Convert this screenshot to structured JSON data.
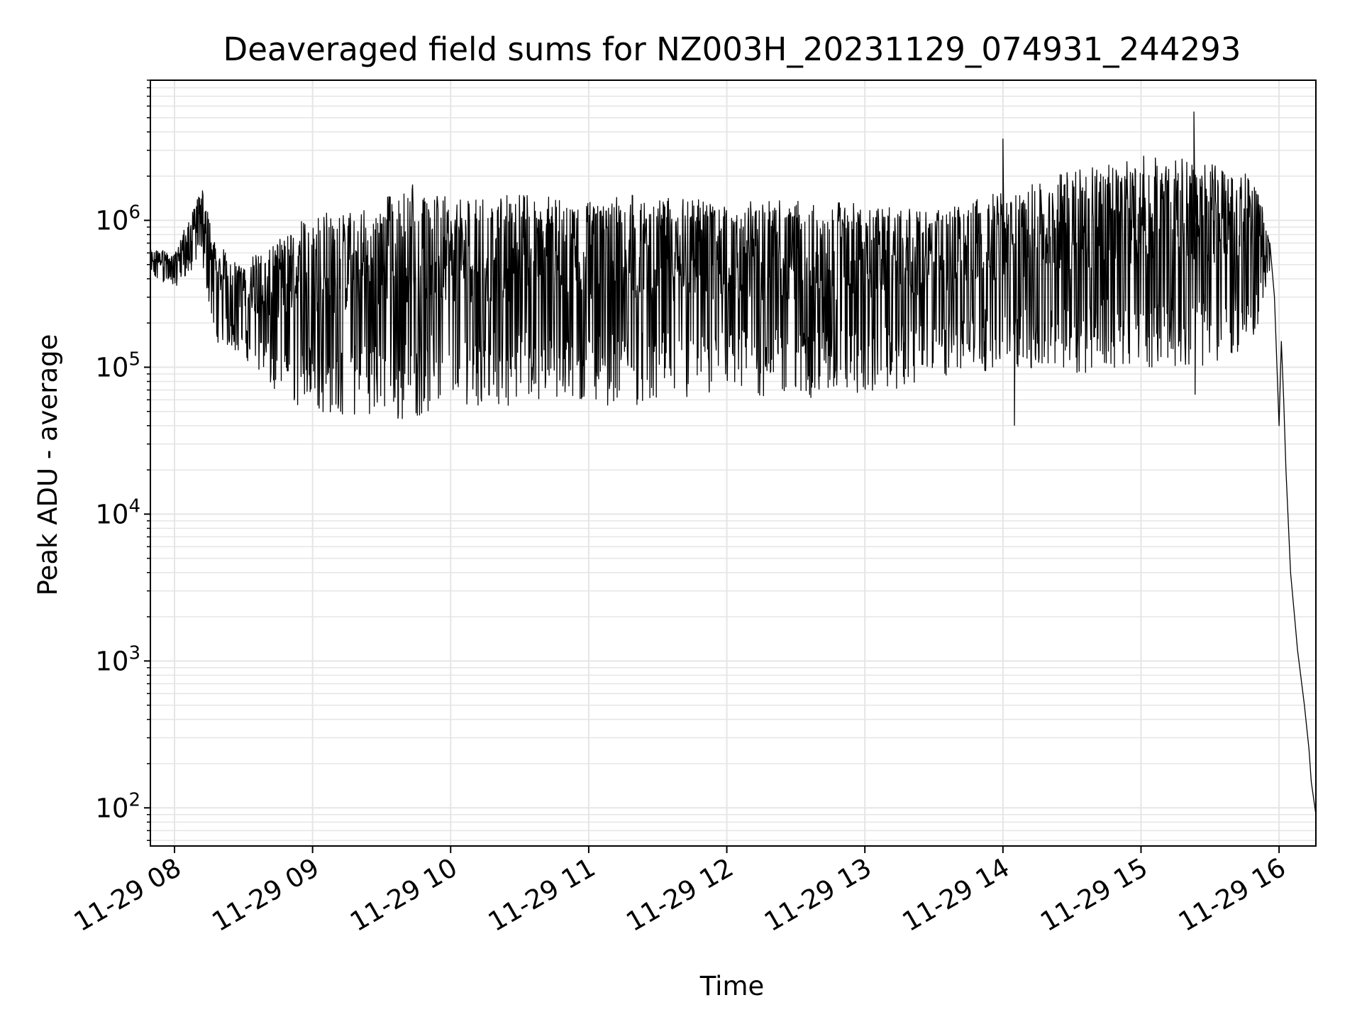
{
  "chart_data": {
    "type": "line",
    "title": "Deaveraged field sums for NZ003H_20231129_074931_244293",
    "xlabel": "Time",
    "ylabel": "Peak ADU - average",
    "x_scale": "time",
    "y_scale": "log",
    "xlim": [
      "2023-11-29T07:49:31",
      "2023-11-29T16:16:00"
    ],
    "ylim": [
      55,
      9000000
    ],
    "grid": true,
    "legend": "none",
    "line_color": "#000000",
    "grid_color": "#e5e5e5",
    "x_ticks": [
      {
        "time": "2023-11-29T08:00",
        "label": "11-29 08"
      },
      {
        "time": "2023-11-29T09:00",
        "label": "11-29 09"
      },
      {
        "time": "2023-11-29T10:00",
        "label": "11-29 10"
      },
      {
        "time": "2023-11-29T11:00",
        "label": "11-29 11"
      },
      {
        "time": "2023-11-29T12:00",
        "label": "11-29 12"
      },
      {
        "time": "2023-11-29T13:00",
        "label": "11-29 13"
      },
      {
        "time": "2023-11-29T14:00",
        "label": "11-29 14"
      },
      {
        "time": "2023-11-29T15:00",
        "label": "11-29 15"
      },
      {
        "time": "2023-11-29T16:00",
        "label": "11-29 16"
      }
    ],
    "y_ticks": [
      {
        "value": 100,
        "base": "10",
        "exp": "2"
      },
      {
        "value": 1000,
        "base": "10",
        "exp": "3"
      },
      {
        "value": 10000,
        "base": "10",
        "exp": "4"
      },
      {
        "value": 100000,
        "base": "10",
        "exp": "5"
      },
      {
        "value": 1000000,
        "base": "10",
        "exp": "6"
      }
    ],
    "envelope": [
      {
        "time": "2023-11-29T07:49:31",
        "low": 400000,
        "high": 650000
      },
      {
        "time": "2023-11-29T08:00:00",
        "low": 350000,
        "high": 600000
      },
      {
        "time": "2023-11-29T08:08:00",
        "low": 450000,
        "high": 1200000
      },
      {
        "time": "2023-11-29T08:12:00",
        "low": 500000,
        "high": 1800000
      },
      {
        "time": "2023-11-29T08:18:00",
        "low": 150000,
        "high": 700000
      },
      {
        "time": "2023-11-29T08:30:00",
        "low": 120000,
        "high": 500000
      },
      {
        "time": "2023-11-29T08:45:00",
        "low": 60000,
        "high": 800000
      },
      {
        "time": "2023-11-29T09:00:00",
        "low": 50000,
        "high": 1100000
      },
      {
        "time": "2023-11-29T09:15:00",
        "low": 45000,
        "high": 1200000
      },
      {
        "time": "2023-11-29T09:30:00",
        "low": 50000,
        "high": 1200000
      },
      {
        "time": "2023-11-29T09:35:00",
        "low": 40000,
        "high": 2000000
      },
      {
        "time": "2023-11-29T10:00:00",
        "low": 55000,
        "high": 1400000
      },
      {
        "time": "2023-11-29T10:30:00",
        "low": 55000,
        "high": 1500000
      },
      {
        "time": "2023-11-29T11:00:00",
        "low": 55000,
        "high": 1500000
      },
      {
        "time": "2023-11-29T11:30:00",
        "low": 55000,
        "high": 1500000
      },
      {
        "time": "2023-11-29T12:00:00",
        "low": 60000,
        "high": 1400000
      },
      {
        "time": "2023-11-29T12:30:00",
        "low": 60000,
        "high": 1400000
      },
      {
        "time": "2023-11-29T13:00:00",
        "low": 65000,
        "high": 1300000
      },
      {
        "time": "2023-11-29T13:30:00",
        "low": 80000,
        "high": 1200000
      },
      {
        "time": "2023-11-29T14:00:00",
        "low": 100000,
        "high": 1600000
      },
      {
        "time": "2023-11-29T14:30:00",
        "low": 90000,
        "high": 2200000
      },
      {
        "time": "2023-11-29T15:00:00",
        "low": 100000,
        "high": 2800000
      },
      {
        "time": "2023-11-29T15:30:00",
        "low": 100000,
        "high": 2500000
      },
      {
        "time": "2023-11-29T15:50:00",
        "low": 150000,
        "high": 2000000
      },
      {
        "time": "2023-11-29T15:56:00",
        "low": 450000,
        "high": 700000
      }
    ],
    "spikes": [
      {
        "time": "2023-11-29T14:00:00",
        "value": 3600000
      },
      {
        "time": "2023-11-29T14:05:00",
        "value": 40000
      },
      {
        "time": "2023-11-29T15:23:00",
        "value": 5500000
      },
      {
        "time": "2023-11-29T15:23:30",
        "value": 65000
      }
    ],
    "tail": [
      {
        "time": "2023-11-29T15:56:00",
        "value": 700000
      },
      {
        "time": "2023-11-29T15:58:00",
        "value": 300000
      },
      {
        "time": "2023-11-29T16:00:00",
        "value": 40000
      },
      {
        "time": "2023-11-29T16:01:00",
        "value": 150000
      },
      {
        "time": "2023-11-29T16:02:00",
        "value": 60000
      },
      {
        "time": "2023-11-29T16:03:00",
        "value": 20000
      },
      {
        "time": "2023-11-29T16:05:00",
        "value": 4000
      },
      {
        "time": "2023-11-29T16:07:00",
        "value": 1800
      },
      {
        "time": "2023-11-29T16:08:00",
        "value": 1200
      },
      {
        "time": "2023-11-29T16:11:00",
        "value": 500
      },
      {
        "time": "2023-11-29T16:13:00",
        "value": 250
      },
      {
        "time": "2023-11-29T16:14:00",
        "value": 150
      },
      {
        "time": "2023-11-29T16:16:00",
        "value": 90
      }
    ]
  }
}
